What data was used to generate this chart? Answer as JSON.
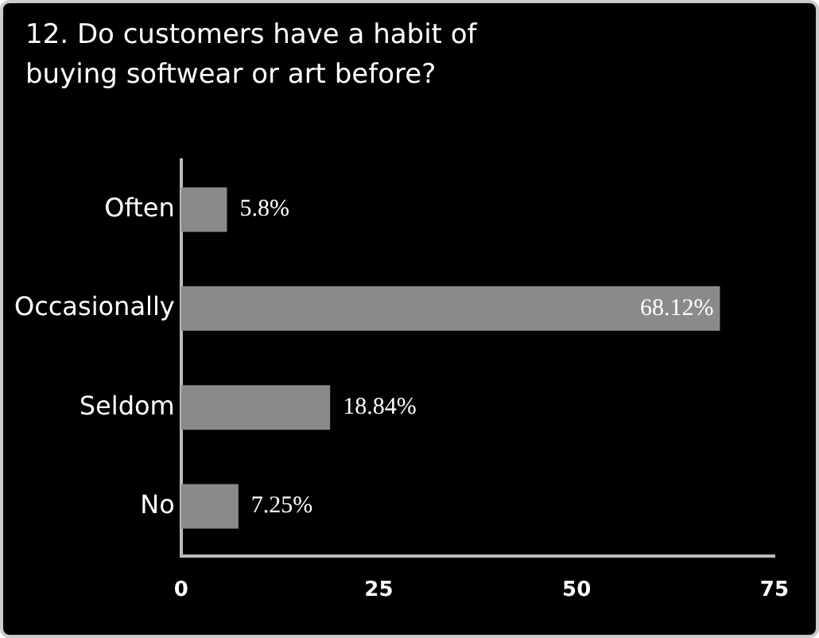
{
  "chart_data": {
    "type": "bar",
    "orientation": "horizontal",
    "title": "12. Do customers have a habit of buying softwear or art before?",
    "categories": [
      "Often",
      "Occasionally",
      "Seldom",
      "No"
    ],
    "values": [
      5.8,
      68.12,
      18.84,
      7.25
    ],
    "value_labels": [
      "5.8%",
      "68.12%",
      "18.84%",
      "7.25%"
    ],
    "color": "#8a8a8a",
    "xlim": [
      0,
      75
    ],
    "xticks": [
      0,
      25,
      50,
      75
    ],
    "grid": false,
    "legend": false
  }
}
